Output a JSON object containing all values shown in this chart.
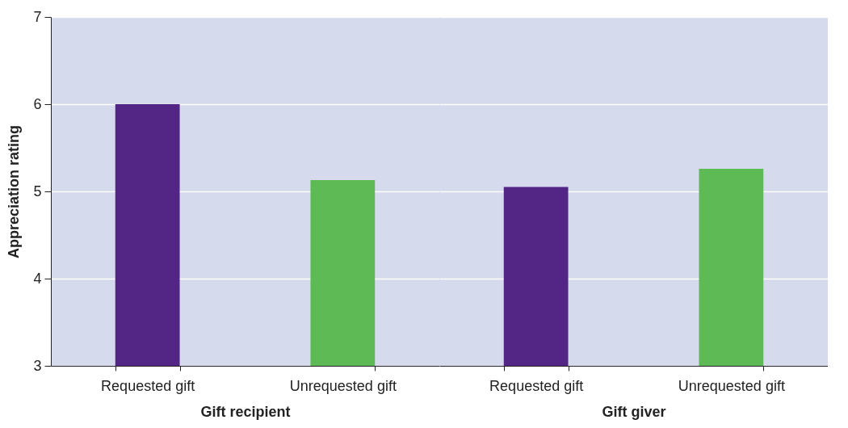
{
  "chart_data": [
    {
      "type": "bar",
      "categories": [
        "Requested gift",
        "Unrequested gift"
      ],
      "values": [
        6.0,
        5.13
      ],
      "colors": [
        "#532585",
        "#5dba55"
      ],
      "xlabel": "Gift recipient",
      "ylabel": "Appreciation rating",
      "ylim": [
        3,
        7
      ],
      "yticks": [
        3,
        4,
        5,
        6,
        7
      ],
      "grid": "y"
    },
    {
      "type": "bar",
      "categories": [
        "Requested gift",
        "Unrequested gift"
      ],
      "values": [
        5.05,
        5.26
      ],
      "colors": [
        "#532585",
        "#5dba55"
      ],
      "xlabel": "Gift giver",
      "ylim": [
        3,
        7
      ],
      "yticks": [
        3,
        4,
        5,
        6,
        7
      ],
      "grid": "y",
      "tick_labels": "x"
    }
  ]
}
